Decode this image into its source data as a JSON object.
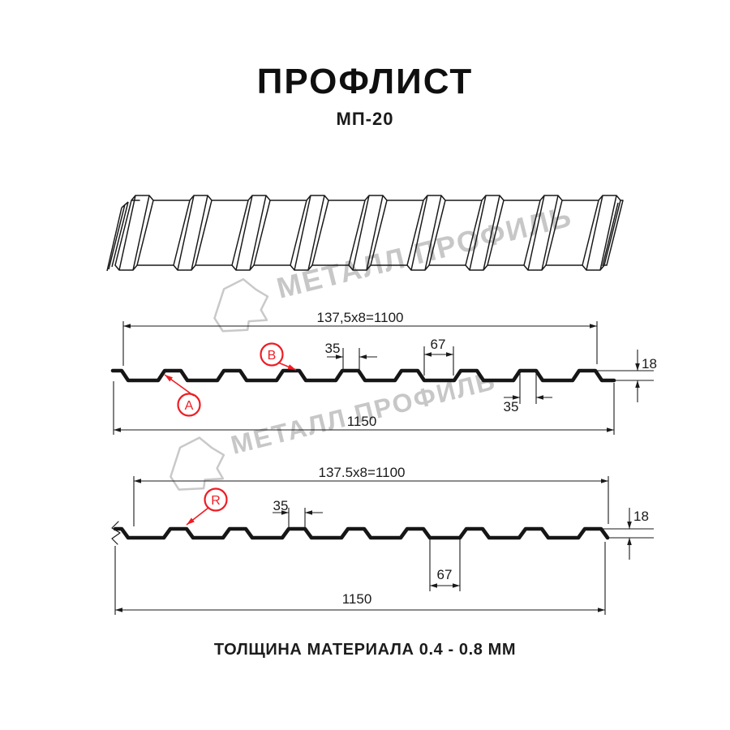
{
  "page": {
    "title": "ПРОФЛИСТ",
    "subtitle": "МП-20",
    "footnote": "ТОЛЩИНА МАТЕРИАЛА 0.4 - 0.8 ММ"
  },
  "watermark": {
    "text": "МЕТАЛЛ ПРОФИЛЬ"
  },
  "colors": {
    "line": "#1a1a1a",
    "profile_stroke": "#161616",
    "red": "#ee1d23",
    "watermark_gray": "#c7c7c7"
  },
  "diagram1": {
    "dim_pitch": "137,5x8=1100",
    "dim_total_width": "1150",
    "dim_rib_top": "35",
    "dim_rib_top_lower": "35",
    "dim_rib_bottom": "67",
    "dim_height": "18",
    "label_a": "A",
    "label_b": "B"
  },
  "diagram2": {
    "dim_pitch": "137.5x8=1100",
    "dim_total_width": "1150",
    "dim_rib_top": "35",
    "dim_rib_bottom": "67",
    "dim_height": "18",
    "label_r": "R"
  }
}
